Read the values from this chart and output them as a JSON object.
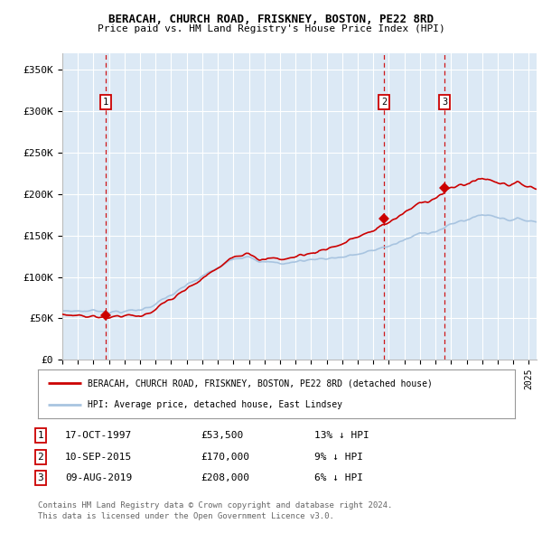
{
  "title1": "BERACAH, CHURCH ROAD, FRISKNEY, BOSTON, PE22 8RD",
  "title2": "Price paid vs. HM Land Registry's House Price Index (HPI)",
  "ylabel_ticks": [
    "£0",
    "£50K",
    "£100K",
    "£150K",
    "£200K",
    "£250K",
    "£300K",
    "£350K"
  ],
  "ytick_values": [
    0,
    50000,
    100000,
    150000,
    200000,
    250000,
    300000,
    350000
  ],
  "ylim": [
    0,
    370000
  ],
  "xlim_start": 1995.0,
  "xlim_end": 2025.5,
  "sale_dates": [
    1997.79,
    2015.69,
    2019.6
  ],
  "sale_prices": [
    53500,
    170000,
    208000
  ],
  "sale_labels": [
    "1",
    "2",
    "3"
  ],
  "legend_line1": "BERACAH, CHURCH ROAD, FRISKNEY, BOSTON, PE22 8RD (detached house)",
  "legend_line2": "HPI: Average price, detached house, East Lindsey",
  "table_rows": [
    [
      "1",
      "17-OCT-1997",
      "£53,500",
      "13% ↓ HPI"
    ],
    [
      "2",
      "10-SEP-2015",
      "£170,000",
      "9% ↓ HPI"
    ],
    [
      "3",
      "09-AUG-2019",
      "£208,000",
      "6% ↓ HPI"
    ]
  ],
  "footnote1": "Contains HM Land Registry data © Crown copyright and database right 2024.",
  "footnote2": "This data is licensed under the Open Government Licence v3.0.",
  "hpi_color": "#a8c4e0",
  "sale_color": "#cc0000",
  "plot_bg": "#dce9f5",
  "grid_color": "#ffffff"
}
